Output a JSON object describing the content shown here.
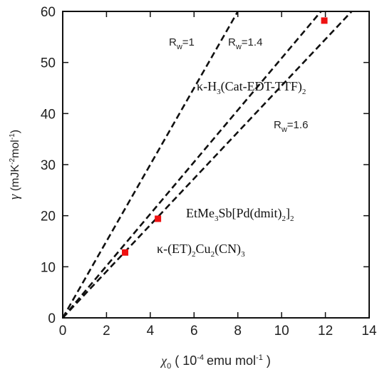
{
  "chart_data": {
    "type": "scatter",
    "xlim": [
      0,
      14
    ],
    "ylim": [
      0,
      60
    ],
    "x_ticks": [
      "0",
      "2",
      "4",
      "6",
      "8",
      "10",
      "12",
      "14"
    ],
    "y_ticks": [
      "0",
      "10",
      "20",
      "30",
      "40",
      "50",
      "60"
    ],
    "xlabel": {
      "symbol": "χ",
      "symbol_sub": "0",
      "open": " ( 10",
      "exponent": "-4",
      "unit": "emu mol",
      "unit_exp": "-1",
      "close": " )"
    },
    "ylabel": {
      "symbol": "γ",
      "text": " (mJK",
      "exp1": "-2",
      "mid": "mol",
      "exp2": "-1",
      "close": ")"
    },
    "grid": false,
    "lines": [
      {
        "label_prefix": "R",
        "label_sub": "w",
        "label_value": "=1",
        "color": "#111111",
        "x": [
          0,
          8
        ],
        "y": [
          0,
          60
        ]
      },
      {
        "label_prefix": "R",
        "label_sub": "w",
        "label_value": "=1.4",
        "color": "#111111",
        "x": [
          0,
          11.8
        ],
        "y": [
          0,
          60
        ]
      },
      {
        "label_prefix": "R",
        "label_sub": "w",
        "label_value": "=1.6",
        "color": "#111111",
        "x": [
          0,
          13.2
        ],
        "y": [
          0,
          60
        ]
      }
    ],
    "points": [
      {
        "x": 2.85,
        "y": 12.8,
        "color": "#ee1111"
      },
      {
        "x": 4.35,
        "y": 19.4,
        "color": "#ee1111"
      },
      {
        "x": 11.95,
        "y": 58.2,
        "color": "#ee1111"
      }
    ],
    "annotations": [
      {
        "pre": "κ-H",
        "sub1": "3",
        "mid": "(Cat-EDT-TTF)",
        "sub2": "2",
        "post": ""
      },
      {
        "pre": "EtMe",
        "sub1": "3",
        "mid": "Sb[Pd(dmit)",
        "sub2": "2",
        "mid2": "]",
        "sub3": "2",
        "post": ""
      },
      {
        "pre": "κ-(ET)",
        "sub1": "2",
        "mid": "Cu",
        "sub2": "2",
        "mid2": "(CN)",
        "sub3": "3",
        "post": ""
      }
    ]
  }
}
